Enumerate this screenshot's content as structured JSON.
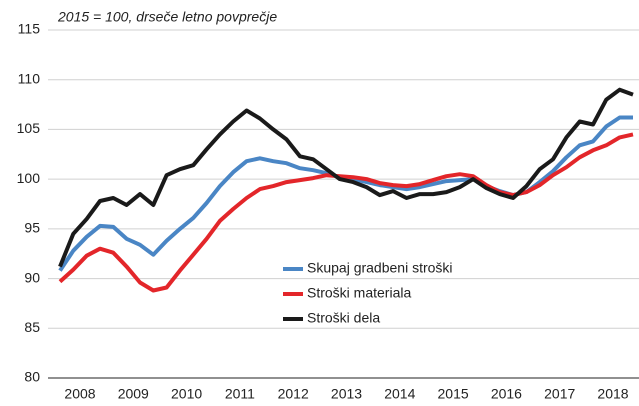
{
  "chart_data": {
    "type": "line",
    "subtitle": "2015 = 100, drseče letno povprečje",
    "categories": [
      null,
      "2008",
      null,
      null,
      null,
      "2009",
      null,
      null,
      null,
      "2010",
      null,
      null,
      null,
      "2011",
      null,
      null,
      null,
      "2012",
      null,
      null,
      null,
      "2013",
      null,
      null,
      null,
      "2014",
      null,
      null,
      null,
      "2015",
      null,
      null,
      null,
      "2016",
      null,
      null,
      null,
      "2017",
      null,
      null,
      null,
      "2018",
      null,
      null
    ],
    "series": [
      {
        "name": "Skupaj gradbeni stroški",
        "color": "#4a86c5",
        "values": [
          90.8,
          92.8,
          94.2,
          95.3,
          95.2,
          94,
          93.4,
          92.4,
          93.8,
          95,
          96.1,
          97.6,
          99.3,
          100.7,
          101.8,
          102.1,
          101.8,
          101.6,
          101.1,
          100.9,
          100.6,
          100.2,
          100,
          99.7,
          99.4,
          99.2,
          99,
          99.2,
          99.5,
          99.8,
          99.9,
          100,
          99.3,
          98.8,
          98.4,
          98.7,
          99.7,
          100.8,
          102.2,
          103.4,
          103.8,
          105.3,
          106.2,
          106.2
        ]
      },
      {
        "name": "Stroški materiala",
        "color": "#e3262a",
        "values": [
          89.7,
          90.9,
          92.3,
          93,
          92.6,
          91.2,
          89.6,
          88.8,
          89.1,
          90.8,
          92.4,
          94,
          95.8,
          97,
          98.1,
          99,
          99.3,
          99.7,
          99.9,
          100.1,
          100.4,
          100.3,
          100.2,
          100,
          99.6,
          99.4,
          99.3,
          99.5,
          99.9,
          100.3,
          100.5,
          100.3,
          99.4,
          98.7,
          98.4,
          98.7,
          99.4,
          100.4,
          101.2,
          102.2,
          102.9,
          103.4,
          104.2,
          104.5
        ]
      },
      {
        "name": "Stroški dela",
        "color": "#1a1a1a",
        "values": [
          91.2,
          94.5,
          96,
          97.8,
          98.1,
          97.4,
          98.5,
          97.4,
          100.4,
          101,
          101.4,
          103,
          104.5,
          105.8,
          106.9,
          106.1,
          105,
          104,
          102.3,
          102,
          101,
          100,
          99.7,
          99.2,
          98.4,
          98.8,
          98.1,
          98.5,
          98.5,
          98.7,
          99.2,
          100,
          99.1,
          98.5,
          98.1,
          99.3,
          101,
          102,
          104.2,
          105.8,
          105.5,
          108,
          109,
          108.5
        ]
      }
    ],
    "ylim": [
      80,
      115
    ],
    "yticks": [
      80,
      85,
      90,
      95,
      100,
      105,
      110,
      115
    ],
    "grid": true
  }
}
